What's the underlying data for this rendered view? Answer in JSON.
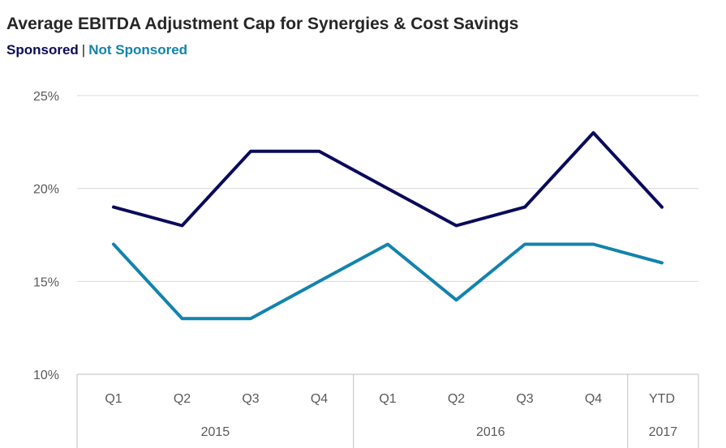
{
  "chart_data": {
    "type": "line",
    "title": "Average EBITDA Adjustment Cap for Synergies & Cost Savings",
    "categories": [
      "Q1",
      "Q2",
      "Q3",
      "Q4",
      "Q1",
      "Q2",
      "Q3",
      "Q4",
      "YTD"
    ],
    "groups": [
      {
        "label": "2015",
        "span": 4
      },
      {
        "label": "2016",
        "span": 4
      },
      {
        "label": "2017",
        "span": 1
      }
    ],
    "series": [
      {
        "name": "Sponsored",
        "color": "#0a0a5c",
        "values": [
          19,
          18,
          22,
          22,
          20,
          18,
          19,
          23,
          19
        ]
      },
      {
        "name": "Not Sponsored",
        "color": "#1283ad",
        "values": [
          17,
          13,
          13,
          15,
          17,
          14,
          17,
          17,
          16
        ]
      }
    ],
    "ylim": [
      10,
      25
    ],
    "yticks": [
      "10%",
      "15%",
      "20%",
      "25%"
    ],
    "ytick_values": [
      10,
      15,
      20,
      25
    ],
    "grid": true,
    "legend_separator": "|"
  }
}
